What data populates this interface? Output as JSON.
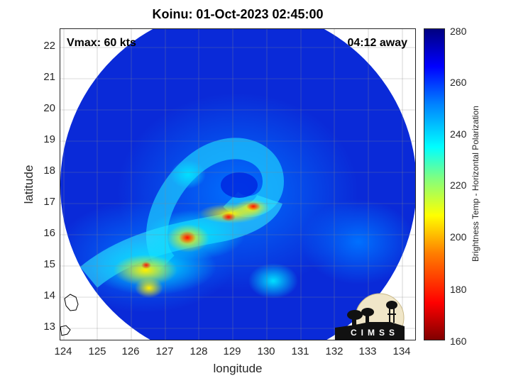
{
  "title": "Koinu: 01-Oct-2023 02:45:00",
  "annotations": {
    "vmax": "Vmax: 60 kts",
    "away": "04:12 away"
  },
  "axes": {
    "xlabel": "longitude",
    "ylabel": "latitude",
    "xticks": [
      "124",
      "125",
      "126",
      "127",
      "128",
      "129",
      "130",
      "131",
      "132",
      "133",
      "134"
    ],
    "yticks": [
      "22",
      "21",
      "20",
      "19",
      "18",
      "17",
      "16",
      "15",
      "14",
      "13"
    ],
    "xlim": [
      123.9,
      134.4
    ],
    "ylim": [
      12.6,
      22.6
    ]
  },
  "colorbar": {
    "label": "Brightness Temp - Horizontal Polarization",
    "ticks": [
      "280",
      "260",
      "240",
      "220",
      "200",
      "180",
      "160"
    ],
    "range": [
      160,
      280
    ],
    "colormap": "jet"
  },
  "logo": {
    "text": "CIMSS"
  },
  "colors": {
    "cold_background": "#0a2ad8",
    "warm_core": "#ff2a00"
  }
}
